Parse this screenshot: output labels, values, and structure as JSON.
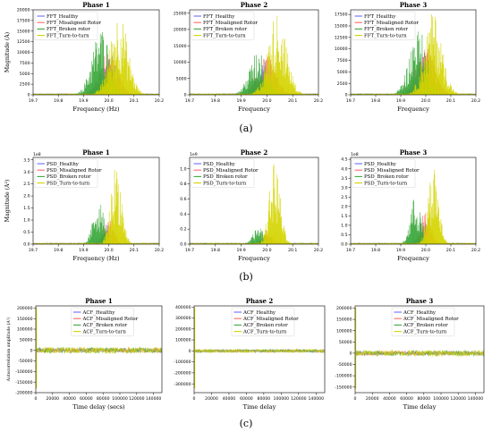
{
  "captions": [
    "(a)",
    "(b)",
    "(c)"
  ],
  "colors": {
    "Healthy": "#6b6bff",
    "Misaligned": "#ff6b6b",
    "Broken": "#3aa83a",
    "Turn": "#d4d400"
  },
  "chart_data": [
    {
      "type": "area",
      "group": "FFT",
      "title": "Phase 1",
      "xlabel": "Frequency (Hz)",
      "ylabel": "Magnitude (A)",
      "xlim": [
        19.7,
        20.2
      ],
      "ylim": [
        0,
        20000
      ],
      "multiplier": "",
      "x_ticks": [
        "19.7",
        "19.8",
        "19.9",
        "20.0",
        "20.1",
        "20.2"
      ],
      "y_ticks": [
        {
          "v": 0,
          "t": "0"
        },
        {
          "v": 2500,
          "t": "2500"
        },
        {
          "v": 5000,
          "t": "5000"
        },
        {
          "v": 7500,
          "t": "7500"
        },
        {
          "v": 10000,
          "t": "10000"
        },
        {
          "v": 12500,
          "t": "12500"
        },
        {
          "v": 15000,
          "t": "15000"
        },
        {
          "v": 17500,
          "t": "17500"
        },
        {
          "v": 20000,
          "t": "20000"
        }
      ],
      "legend_position": "top-left",
      "series": [
        {
          "name": "FFT_Healthy",
          "color_key": "Healthy",
          "peak": 10000,
          "center": 20.0,
          "width": 0.05
        },
        {
          "name": "FFT_Misaligned Rotor",
          "color_key": "Misaligned",
          "peak": 11000,
          "center": 20.0,
          "width": 0.05
        },
        {
          "name": "FFT_Broken rotor",
          "color_key": "Broken",
          "peak": 16000,
          "center": 19.97,
          "width": 0.05
        },
        {
          "name": "FFT_Turn-to-turn",
          "color_key": "Turn",
          "peak": 19500,
          "center": 20.04,
          "width": 0.05
        }
      ]
    },
    {
      "type": "area",
      "group": "FFT",
      "title": "Phase 2",
      "xlabel": "Frequency",
      "ylabel": "",
      "xlim": [
        19.7,
        20.2
      ],
      "ylim": [
        0,
        26000
      ],
      "multiplier": "",
      "x_ticks": [
        "19.7",
        "19.8",
        "19.9",
        "20.0",
        "20.1",
        "20.2"
      ],
      "y_ticks": [
        {
          "v": 0,
          "t": "0"
        },
        {
          "v": 5000,
          "t": "5000"
        },
        {
          "v": 10000,
          "t": "10000"
        },
        {
          "v": 15000,
          "t": "15000"
        },
        {
          "v": 20000,
          "t": "20000"
        },
        {
          "v": 25000,
          "t": "25000"
        }
      ],
      "legend_position": "top-left",
      "series": [
        {
          "name": "FFT_Healthy",
          "color_key": "Healthy",
          "peak": 11000,
          "center": 20.0,
          "width": 0.05
        },
        {
          "name": "FFT_Misaligned Rotor",
          "color_key": "Misaligned",
          "peak": 12000,
          "center": 20.0,
          "width": 0.05
        },
        {
          "name": "FFT_Broken rotor",
          "color_key": "Broken",
          "peak": 14000,
          "center": 19.97,
          "width": 0.05
        },
        {
          "name": "FFT_Turn-to-turn",
          "color_key": "Turn",
          "peak": 25500,
          "center": 20.04,
          "width": 0.05
        }
      ]
    },
    {
      "type": "area",
      "group": "FFT",
      "title": "Phase 3",
      "xlabel": "Frequency",
      "ylabel": "",
      "xlim": [
        19.7,
        20.2
      ],
      "ylim": [
        0,
        18500
      ],
      "multiplier": "",
      "x_ticks": [
        "19.7",
        "19.8",
        "19.9",
        "20.0",
        "20.1",
        "20.2"
      ],
      "y_ticks": [
        {
          "v": 0,
          "t": "0"
        },
        {
          "v": 2500,
          "t": "2500"
        },
        {
          "v": 5000,
          "t": "5000"
        },
        {
          "v": 7500,
          "t": "7500"
        },
        {
          "v": 10000,
          "t": "10000"
        },
        {
          "v": 12500,
          "t": "12500"
        },
        {
          "v": 15000,
          "t": "15000"
        },
        {
          "v": 17500,
          "t": "17500"
        }
      ],
      "legend_position": "top-left",
      "series": [
        {
          "name": "FFT_Healthy",
          "color_key": "Healthy",
          "peak": 10000,
          "center": 20.0,
          "width": 0.05
        },
        {
          "name": "FFT_Misaligned Rotor",
          "color_key": "Misaligned",
          "peak": 11000,
          "center": 20.0,
          "width": 0.05
        },
        {
          "name": "FFT_Broken rotor",
          "color_key": "Broken",
          "peak": 14500,
          "center": 19.97,
          "width": 0.05
        },
        {
          "name": "FFT_Turn-to-turn",
          "color_key": "Turn",
          "peak": 18000,
          "center": 20.03,
          "width": 0.05
        }
      ]
    },
    {
      "type": "area",
      "group": "PSD",
      "title": "Phase 1",
      "xlabel": "Frequency (Hz)",
      "ylabel": "Magnitude (A²)",
      "xlim": [
        19.7,
        20.2
      ],
      "ylim": [
        0,
        3.6
      ],
      "multiplier": "1e8",
      "x_ticks": [
        "19.7",
        "19.8",
        "19.9",
        "20.0",
        "20.1",
        "20.2"
      ],
      "y_ticks": [
        {
          "v": 0,
          "t": "0.0"
        },
        {
          "v": 0.5,
          "t": "0.5"
        },
        {
          "v": 1.0,
          "t": "1.0"
        },
        {
          "v": 1.5,
          "t": "1.5"
        },
        {
          "v": 2.0,
          "t": "2.0"
        },
        {
          "v": 2.5,
          "t": "2.5"
        },
        {
          "v": 3.0,
          "t": "3.0"
        },
        {
          "v": 3.5,
          "t": "3.5"
        }
      ],
      "legend_position": "top-left",
      "series": [
        {
          "name": "PSD_Healthy",
          "color_key": "Healthy",
          "peak": 0.9,
          "center": 20.0,
          "width": 0.03
        },
        {
          "name": "PSD_Misaligned Rotor",
          "color_key": "Misaligned",
          "peak": 1.3,
          "center": 20.0,
          "width": 0.03
        },
        {
          "name": "PSD_Broken rotor",
          "color_key": "Broken",
          "peak": 1.9,
          "center": 19.96,
          "width": 0.03
        },
        {
          "name": "PSD_Turn-to-turn",
          "color_key": "Turn",
          "peak": 3.4,
          "center": 20.03,
          "width": 0.03
        }
      ]
    },
    {
      "type": "area",
      "group": "PSD",
      "title": "Phase 2",
      "xlabel": "Frequency",
      "ylabel": "",
      "xlim": [
        19.7,
        20.2
      ],
      "ylim": [
        0,
        1.15
      ],
      "multiplier": "1e9",
      "x_ticks": [
        "19.7",
        "19.8",
        "19.9",
        "20.0",
        "20.1",
        "20.2"
      ],
      "y_ticks": [
        {
          "v": 0,
          "t": "0.0"
        },
        {
          "v": 0.2,
          "t": "0.2"
        },
        {
          "v": 0.4,
          "t": "0.4"
        },
        {
          "v": 0.6,
          "t": "0.6"
        },
        {
          "v": 0.8,
          "t": "0.8"
        },
        {
          "v": 1.0,
          "t": "1.0"
        }
      ],
      "legend_position": "top-left",
      "series": [
        {
          "name": "PSD_Healthy",
          "color_key": "Healthy",
          "peak": 0.12,
          "center": 20.0,
          "width": 0.03
        },
        {
          "name": "PSD_Misaligned Rotor",
          "color_key": "Misaligned",
          "peak": 0.2,
          "center": 20.0,
          "width": 0.03
        },
        {
          "name": "PSD_Broken rotor",
          "color_key": "Broken",
          "peak": 0.25,
          "center": 19.97,
          "width": 0.03
        },
        {
          "name": "PSD_Turn-to-turn",
          "color_key": "Turn",
          "peak": 1.1,
          "center": 20.03,
          "width": 0.03
        }
      ]
    },
    {
      "type": "area",
      "group": "PSD",
      "title": "Phase 3",
      "xlabel": "Frequency",
      "ylabel": "",
      "xlim": [
        19.7,
        20.2
      ],
      "ylim": [
        0,
        4.6
      ],
      "multiplier": "1e8",
      "x_ticks": [
        "19.7",
        "19.8",
        "19.9",
        "20.0",
        "20.1",
        "20.2"
      ],
      "y_ticks": [
        {
          "v": 0,
          "t": "0.0"
        },
        {
          "v": 0.5,
          "t": "0.5"
        },
        {
          "v": 1.0,
          "t": "1.0"
        },
        {
          "v": 1.5,
          "t": "1.5"
        },
        {
          "v": 2.0,
          "t": "2.0"
        },
        {
          "v": 2.5,
          "t": "2.5"
        },
        {
          "v": 3.0,
          "t": "3.0"
        },
        {
          "v": 3.5,
          "t": "3.5"
        },
        {
          "v": 4.0,
          "t": "4.0"
        },
        {
          "v": 4.5,
          "t": "4.5"
        }
      ],
      "legend_position": "top-left",
      "series": [
        {
          "name": "PSD_Healthy",
          "color_key": "Healthy",
          "peak": 1.2,
          "center": 20.0,
          "width": 0.03
        },
        {
          "name": "PSD_Misaligned Rotor",
          "color_key": "Misaligned",
          "peak": 1.8,
          "center": 20.0,
          "width": 0.03
        },
        {
          "name": "PSD_Broken rotor",
          "color_key": "Broken",
          "peak": 2.6,
          "center": 19.96,
          "width": 0.03
        },
        {
          "name": "PSD_Turn-to-turn",
          "color_key": "Turn",
          "peak": 4.3,
          "center": 20.03,
          "width": 0.03
        }
      ]
    },
    {
      "type": "line",
      "group": "ACF",
      "title": "Phase 1",
      "xlabel": "Time delay (secs)",
      "ylabel": "Autocorrelation amplitude (A²)",
      "xlim": [
        0,
        150000
      ],
      "ylim": [
        -200000,
        210000
      ],
      "multiplier": "",
      "x_ticks": [
        "0",
        "20000",
        "40000",
        "60000",
        "80000",
        "100000",
        "120000",
        "140000"
      ],
      "y_ticks": [
        {
          "v": -200000,
          "t": "-200000"
        },
        {
          "v": -150000,
          "t": "-150000"
        },
        {
          "v": -100000,
          "t": "-100000"
        },
        {
          "v": -50000,
          "t": "-50000"
        },
        {
          "v": 0,
          "t": "0"
        },
        {
          "v": 50000,
          "t": "50000"
        },
        {
          "v": 100000,
          "t": "100000"
        },
        {
          "v": 150000,
          "t": "150000"
        },
        {
          "v": 200000,
          "t": "200000"
        }
      ],
      "legend_position": "top-center",
      "series": [
        {
          "name": "ACF_Healthy",
          "color_key": "Healthy",
          "band": 9000
        },
        {
          "name": "ACF_Misaligned Rotor",
          "color_key": "Misaligned",
          "band": 11000
        },
        {
          "name": "ACF_Broken rotor",
          "color_key": "Broken",
          "band": 13000
        },
        {
          "name": "ACF_Turn-to-turn",
          "color_key": "Turn",
          "band": 15000
        }
      ]
    },
    {
      "type": "line",
      "group": "ACF",
      "title": "Phase 2",
      "xlabel": "Time delay",
      "ylabel": "",
      "xlim": [
        0,
        150000
      ],
      "ylim": [
        -380000,
        410000
      ],
      "multiplier": "",
      "x_ticks": [
        "0",
        "20000",
        "40000",
        "60000",
        "80000",
        "100000",
        "120000",
        "140000"
      ],
      "y_ticks": [
        {
          "v": -300000,
          "t": "-300000"
        },
        {
          "v": -200000,
          "t": "-200000"
        },
        {
          "v": -100000,
          "t": "-100000"
        },
        {
          "v": 0,
          "t": "0"
        },
        {
          "v": 100000,
          "t": "100000"
        },
        {
          "v": 200000,
          "t": "200000"
        },
        {
          "v": 300000,
          "t": "300000"
        },
        {
          "v": 400000,
          "t": "400000"
        }
      ],
      "legend_position": "top-center",
      "series": [
        {
          "name": "ACF_Healthy",
          "color_key": "Healthy",
          "band": 10000
        },
        {
          "name": "ACF_Misaligned Rotor",
          "color_key": "Misaligned",
          "band": 12000
        },
        {
          "name": "ACF_Broken rotor",
          "color_key": "Broken",
          "band": 14000
        },
        {
          "name": "ACF_Turn-to-turn",
          "color_key": "Turn",
          "band": 16000
        }
      ]
    },
    {
      "type": "line",
      "group": "ACF",
      "title": "Phase 3",
      "xlabel": "Time delay",
      "ylabel": "",
      "xlim": [
        0,
        150000
      ],
      "ylim": [
        -175000,
        210000
      ],
      "multiplier": "",
      "x_ticks": [
        "0",
        "20000",
        "40000",
        "60000",
        "80000",
        "100000",
        "120000",
        "140000"
      ],
      "y_ticks": [
        {
          "v": -150000,
          "t": "-150000"
        },
        {
          "v": -100000,
          "t": "-100000"
        },
        {
          "v": -50000,
          "t": "-50000"
        },
        {
          "v": 0,
          "t": "0"
        },
        {
          "v": 50000,
          "t": "50000"
        },
        {
          "v": 100000,
          "t": "100000"
        },
        {
          "v": 150000,
          "t": "150000"
        },
        {
          "v": 200000,
          "t": "200000"
        }
      ],
      "legend_position": "top-center",
      "series": [
        {
          "name": "ACF_Healthy",
          "color_key": "Healthy",
          "band": 8000
        },
        {
          "name": "ACF_Misaligned Rotor",
          "color_key": "Misaligned",
          "band": 10000
        },
        {
          "name": "ACF_Broken rotor",
          "color_key": "Broken",
          "band": 12000
        },
        {
          "name": "ACF_Turn-to-turn",
          "color_key": "Turn",
          "band": 14000
        }
      ]
    }
  ]
}
